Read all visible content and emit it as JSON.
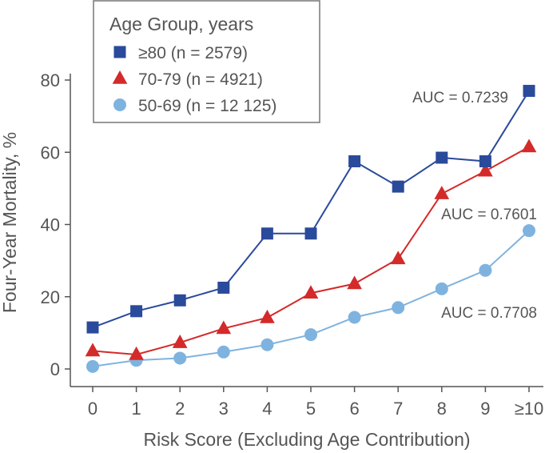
{
  "chart_data": {
    "type": "line",
    "xlabel": "Risk Score (Excluding Age Contribution)",
    "ylabel": "Four-Year Mortality, %",
    "categories": [
      "0",
      "1",
      "2",
      "3",
      "4",
      "5",
      "6",
      "7",
      "8",
      "9",
      "≥10"
    ],
    "ylim": [
      0,
      80
    ],
    "yticks": [
      0,
      20,
      40,
      60,
      80
    ],
    "grid": false,
    "legend": {
      "title": "Age Group, years",
      "placement": "top-left"
    },
    "series": [
      {
        "name": "≥80 (n = 2579)",
        "marker": "square",
        "color": "#2a4a9b",
        "values": [
          11.5,
          16,
          19,
          22.5,
          37.5,
          37.5,
          57.5,
          50.5,
          58.5,
          57.5,
          77
        ],
        "annotation": "AUC = 0.7239"
      },
      {
        "name": "70-79 (n = 4921)",
        "marker": "triangle",
        "color": "#d42a2a",
        "values": [
          5,
          4,
          7.3,
          11.2,
          14.2,
          21,
          23.6,
          30.5,
          48.5,
          54.8,
          61.5
        ],
        "annotation": "AUC = 0.7601"
      },
      {
        "name": "50-69 (n = 12 125)",
        "marker": "circle",
        "color": "#7fb3df",
        "values": [
          0.7,
          2.4,
          3,
          4.7,
          6.7,
          9.5,
          14.3,
          17,
          22.2,
          27.3,
          38.3
        ],
        "annotation": "AUC = 0.7708"
      }
    ]
  }
}
